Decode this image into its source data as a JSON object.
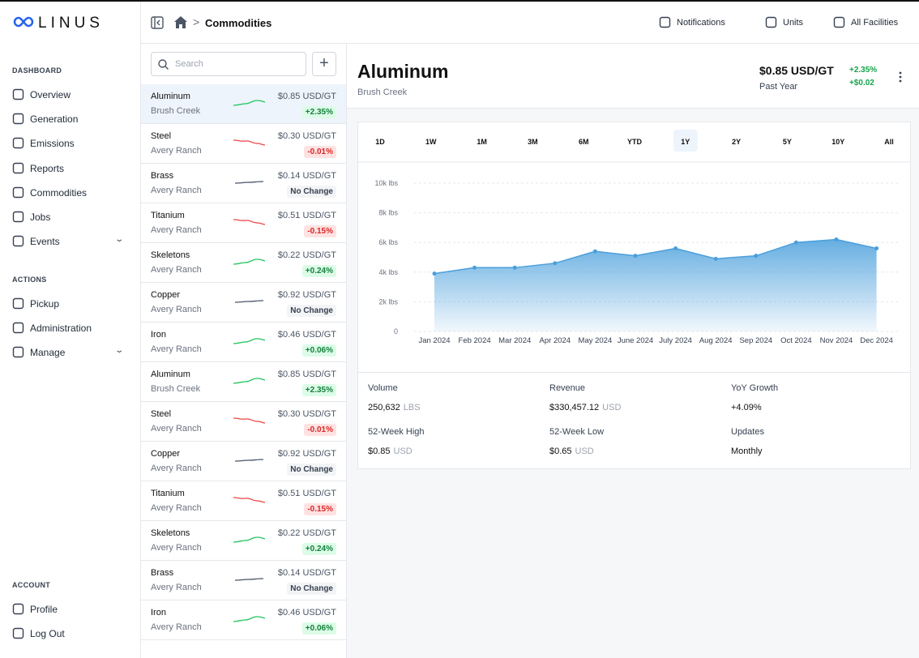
{
  "brand": "LINUS",
  "sidebar": [
    {
      "title": "DASHBOARD",
      "items": [
        "Overview",
        "Generation",
        "Emissions",
        "Reports",
        "Commodities",
        "Jobs",
        "Events"
      ]
    },
    {
      "title": "ACTIONS",
      "items": [
        "Pickup",
        "Administration",
        "Manage"
      ]
    },
    {
      "title": "ACCOUNT",
      "items": [
        "Profile",
        "Log Out"
      ]
    }
  ],
  "topbar": {
    "breadcrumb": "Commodities",
    "actions": [
      "Notifications",
      "Units",
      "All Facilities"
    ]
  },
  "search_placeholder": "Search",
  "commodities": [
    {
      "name": "Aluminum",
      "location": "Brush Creek",
      "price": "$0.85 USD/GT",
      "change": "+2.35%"
    },
    {
      "name": "Steel",
      "location": "Avery Ranch",
      "price": "$0.30 USD/GT",
      "change": "-0.01%"
    },
    {
      "name": "Brass",
      "location": "Avery Ranch",
      "price": "$0.14 USD/GT",
      "change": "No Change"
    },
    {
      "name": "Titanium",
      "location": "Avery Ranch",
      "price": "$0.51 USD/GT",
      "change": "-0.15%"
    },
    {
      "name": "Skeletons",
      "location": "Avery Ranch",
      "price": "$0.22 USD/GT",
      "change": "+0.24%"
    },
    {
      "name": "Copper",
      "location": "Avery Ranch",
      "price": "$0.92 USD/GT",
      "change": "No Change"
    },
    {
      "name": "Iron",
      "location": "Avery Ranch",
      "price": "$0.46 USD/GT",
      "change": "+0.06%"
    },
    {
      "name": "Aluminum",
      "location": "Brush Creek",
      "price": "$0.85 USD/GT",
      "change": "+2.35%"
    },
    {
      "name": "Steel",
      "location": "Avery Ranch",
      "price": "$0.30 USD/GT",
      "change": "-0.01%"
    },
    {
      "name": "Copper",
      "location": "Avery Ranch",
      "price": "$0.92 USD/GT",
      "change": "No Change"
    },
    {
      "name": "Titanium",
      "location": "Avery Ranch",
      "price": "$0.51 USD/GT",
      "change": "-0.15%"
    },
    {
      "name": "Skeletons",
      "location": "Avery Ranch",
      "price": "$0.22 USD/GT",
      "change": "+0.24%"
    },
    {
      "name": "Brass",
      "location": "Avery Ranch",
      "price": "$0.14 USD/GT",
      "change": "No Change"
    },
    {
      "name": "Iron",
      "location": "Avery Ranch",
      "price": "$0.46 USD/GT",
      "change": "+0.06%"
    }
  ],
  "detail": {
    "title": "Aluminum",
    "subtitle": "Brush Creek",
    "price": "$0.85 USD/GT",
    "period": "Past Year",
    "change_pct": "+2.35%",
    "change_abs": "+$0.02",
    "ranges": [
      "1D",
      "1W",
      "1M",
      "3M",
      "6M",
      "YTD",
      "1Y",
      "2Y",
      "5Y",
      "10Y",
      "All"
    ],
    "selected_range": "1Y",
    "stats": [
      {
        "label": "Volume",
        "value": "250,632",
        "unit": "LBS"
      },
      {
        "label": "Revenue",
        "value": "$330,457.12",
        "unit": "USD"
      },
      {
        "label": "YoY Growth",
        "value": "+4.09%"
      },
      {
        "label": "52-Week High",
        "value": "$0.85",
        "unit": "USD"
      },
      {
        "label": "52-Week Low",
        "value": "$0.65",
        "unit": "USD"
      },
      {
        "label": "Updates",
        "value": "Monthly"
      }
    ]
  },
  "chart": {
    "type": "area",
    "categories": [
      "Jan 2024",
      "Feb 2024",
      "Mar 2024",
      "Apr 2024",
      "May 2024",
      "June 2024",
      "July 2024",
      "Aug 2024",
      "Sep 2024",
      "Oct 2024",
      "Nov 2024",
      "Dec 2024"
    ],
    "values": [
      3900,
      4300,
      4300,
      4600,
      5400,
      5100,
      5600,
      4900,
      5100,
      6000,
      6200,
      5600
    ],
    "color": "#4a9fdc",
    "ylim": [
      0,
      10000
    ],
    "yticks": [
      0,
      {
        "value": 2000,
        "label": "2k lbs"
      },
      {
        "value": 4000,
        "label": "4k lbs"
      },
      {
        "value": 6000,
        "label": "6k lbs"
      },
      {
        "value": 8000,
        "label": "8k lbs"
      },
      {
        "value": 10000,
        "label": "10k lbs"
      }
    ],
    "grid": true
  }
}
